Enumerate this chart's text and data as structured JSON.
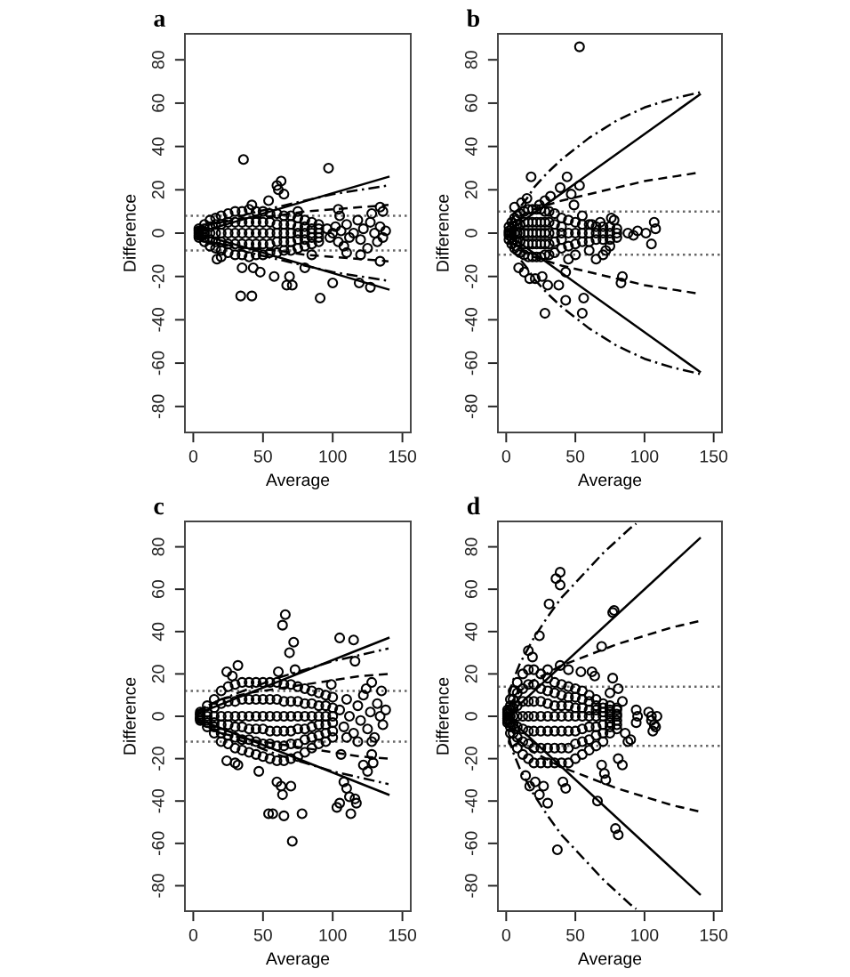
{
  "chart_data": [
    {
      "type": "scatter",
      "title": "a",
      "xlabel": "Average",
      "ylabel": "Difference",
      "xlim": [
        -6,
        156
      ],
      "ylim": [
        -92,
        92
      ],
      "xticks": [
        0,
        50,
        100,
        150
      ],
      "yticks": [
        -80,
        -60,
        -40,
        -20,
        0,
        20,
        40,
        60,
        80
      ],
      "ref_lines": [
        {
          "axis": "y",
          "value": 8,
          "color": "#666666",
          "line_style": "dotted"
        },
        {
          "axis": "y",
          "value": -8,
          "color": "#666666",
          "line_style": "dotted"
        }
      ],
      "series": [
        {
          "marker": "circle",
          "color": "#000000",
          "x": [
            4,
            4,
            4,
            4,
            4,
            8,
            8,
            8,
            8,
            8,
            12,
            12,
            12,
            12,
            12,
            16,
            16,
            16,
            16,
            16,
            20,
            20,
            20,
            20,
            20,
            25,
            25,
            25,
            25,
            25,
            30,
            30,
            30,
            30,
            30,
            35,
            35,
            35,
            35,
            35,
            40,
            40,
            40,
            40,
            40,
            45,
            45,
            45,
            45,
            45,
            50,
            50,
            50,
            50,
            50,
            55,
            55,
            55,
            55,
            55,
            60,
            60,
            60,
            60,
            60,
            65,
            65,
            65,
            65,
            65,
            70,
            70,
            70,
            70,
            70,
            75,
            75,
            75,
            75,
            75,
            80,
            80,
            80,
            80,
            80,
            85,
            85,
            85,
            85,
            85,
            90,
            90,
            90,
            90,
            90,
            96,
            98,
            100,
            102,
            104,
            106,
            108,
            110,
            112,
            115,
            118,
            120,
            122,
            125,
            127,
            130,
            132,
            134,
            136,
            138,
            110,
            120,
            128,
            105,
            136,
            36,
            97,
            60,
            63,
            61,
            65,
            54,
            42,
            104,
            134,
            134,
            34,
            42,
            91,
            69,
            71,
            67,
            58,
            48,
            43,
            35,
            100,
            119,
            127,
            80,
            20,
            17,
            75,
            85
          ],
          "values": [
            2,
            1,
            0,
            -1,
            -2,
            4,
            2,
            0,
            -2,
            -4,
            6,
            3,
            0,
            -3,
            -6,
            7,
            4,
            0,
            -4,
            -7,
            8,
            4,
            0,
            -4,
            -8,
            9,
            5,
            0,
            -5,
            -9,
            10,
            5,
            0,
            -5,
            -10,
            10,
            5,
            0,
            -5,
            -10,
            11,
            5,
            0,
            -5,
            -11,
            10,
            5,
            0,
            -5,
            -10,
            10,
            5,
            0,
            -5,
            -10,
            9,
            5,
            0,
            -5,
            -9,
            9,
            4,
            0,
            -4,
            -9,
            8,
            4,
            0,
            -4,
            -8,
            8,
            4,
            0,
            -4,
            -8,
            7,
            3,
            0,
            -3,
            -7,
            6,
            3,
            0,
            -3,
            -6,
            5,
            2,
            0,
            -2,
            -5,
            4,
            2,
            0,
            -2,
            -4,
            2,
            -2,
            0,
            3,
            -4,
            1,
            -6,
            4,
            -2,
            0,
            6,
            -3,
            2,
            -7,
            5,
            0,
            -4,
            3,
            -2,
            1,
            -9,
            -10,
            9,
            8,
            10,
            34,
            30,
            22,
            24,
            20,
            18,
            15,
            13,
            11,
            12,
            -13,
            -29,
            -29,
            -30,
            -20,
            -24,
            -24,
            -20,
            -18,
            -16,
            -16,
            -23,
            -23,
            -25,
            -16,
            -11,
            -12,
            10,
            -10
          ]
        },
        {
          "type": "line",
          "line_style": "solid",
          "color": "#000000",
          "x": [
            2,
            140
          ],
          "values": [
            0,
            26
          ]
        },
        {
          "type": "line",
          "line_style": "solid",
          "color": "#000000",
          "x": [
            2,
            140
          ],
          "values": [
            0,
            -26
          ]
        },
        {
          "type": "line",
          "line_style": "dashdot",
          "color": "#000000",
          "x": [
            2,
            10,
            20,
            40,
            60,
            80,
            100,
            120,
            140
          ],
          "values": [
            1,
            3,
            5,
            9,
            12,
            15,
            18,
            20,
            22
          ]
        },
        {
          "type": "line",
          "line_style": "dashdot",
          "color": "#000000",
          "x": [
            2,
            10,
            20,
            40,
            60,
            80,
            100,
            120,
            140
          ],
          "values": [
            -1,
            -3,
            -5,
            -9,
            -12,
            -15,
            -18,
            -20,
            -22
          ]
        },
        {
          "type": "line",
          "line_style": "dashed",
          "color": "#000000",
          "x": [
            2,
            10,
            20,
            40,
            60,
            80,
            100,
            120,
            140
          ],
          "values": [
            2,
            4,
            5,
            7,
            8,
            10,
            11,
            12,
            13
          ]
        },
        {
          "type": "line",
          "line_style": "dashed",
          "color": "#000000",
          "x": [
            2,
            10,
            20,
            40,
            60,
            80,
            100,
            120,
            140
          ],
          "values": [
            -2,
            -4,
            -5,
            -7,
            -8,
            -10,
            -11,
            -12,
            -13
          ]
        }
      ]
    },
    {
      "type": "scatter",
      "title": "b",
      "xlabel": "Average",
      "ylabel": "Difference",
      "xlim": [
        -6,
        156
      ],
      "ylim": [
        -92,
        92
      ],
      "xticks": [
        0,
        50,
        100,
        150
      ],
      "yticks": [
        -80,
        -60,
        -40,
        -20,
        0,
        20,
        40,
        60,
        80
      ],
      "ref_lines": [
        {
          "axis": "y",
          "value": 10,
          "color": "#666666",
          "line_style": "dotted"
        },
        {
          "axis": "y",
          "value": -10,
          "color": "#666666",
          "line_style": "dotted"
        }
      ],
      "series": [
        {
          "marker": "circle",
          "color": "#000000",
          "x": [
            2,
            2,
            2,
            2,
            2,
            4,
            4,
            4,
            4,
            4,
            6,
            6,
            6,
            6,
            6,
            8,
            8,
            8,
            8,
            8,
            10,
            10,
            10,
            10,
            10,
            13,
            13,
            13,
            13,
            13,
            16,
            16,
            16,
            16,
            16,
            19,
            19,
            19,
            19,
            19,
            22,
            22,
            22,
            22,
            22,
            25,
            25,
            25,
            25,
            25,
            28,
            28,
            28,
            28,
            28,
            31,
            31,
            31,
            31,
            31,
            35,
            35,
            35,
            35,
            35,
            40,
            40,
            40,
            40,
            40,
            45,
            45,
            45,
            50,
            50,
            50,
            55,
            55,
            55,
            60,
            60,
            60,
            65,
            65,
            65,
            70,
            70,
            70,
            75,
            75,
            75,
            80,
            80,
            80,
            45,
            50,
            60,
            65,
            70,
            72,
            55,
            62,
            68,
            76,
            75,
            78,
            53,
            18,
            44,
            53,
            28,
            6,
            11,
            15,
            24,
            32,
            39,
            47,
            49,
            28,
            55,
            43,
            56,
            84,
            83,
            88,
            92,
            95,
            101,
            105,
            107,
            108,
            9,
            13,
            17,
            21,
            26,
            30,
            38,
            43
          ],
          "values": [
            3,
            1,
            0,
            -1,
            -3,
            5,
            2,
            0,
            -2,
            -5,
            7,
            3,
            0,
            -3,
            -7,
            8,
            4,
            0,
            -4,
            -8,
            9,
            4,
            0,
            -4,
            -9,
            10,
            5,
            0,
            -5,
            -10,
            11,
            5,
            0,
            -5,
            -11,
            11,
            5,
            0,
            -5,
            -11,
            11,
            5,
            0,
            -5,
            -11,
            11,
            5,
            0,
            -5,
            -11,
            10,
            5,
            0,
            -5,
            -10,
            10,
            5,
            0,
            -5,
            -10,
            9,
            4,
            0,
            -4,
            -9,
            7,
            3,
            0,
            -3,
            -7,
            6,
            0,
            -6,
            5,
            0,
            -5,
            4,
            0,
            -4,
            4,
            0,
            -4,
            3,
            0,
            -3,
            3,
            0,
            -3,
            3,
            0,
            -3,
            2,
            0,
            -2,
            -12,
            -10,
            -8,
            -12,
            -10,
            -8,
            8,
            4,
            5,
            7,
            -6,
            6,
            86,
            26,
            26,
            22,
            15,
            12,
            14,
            16,
            13,
            17,
            21,
            18,
            13,
            -37,
            -37,
            -31,
            -30,
            -20,
            -23,
            0,
            -1,
            1,
            0,
            -5,
            5,
            2,
            -16,
            -18,
            -21,
            -21,
            -20,
            -24,
            -24,
            -18
          ]
        },
        {
          "type": "line",
          "line_style": "solid",
          "color": "#000000",
          "x": [
            2,
            140
          ],
          "values": [
            1,
            64
          ]
        },
        {
          "type": "line",
          "line_style": "solid",
          "color": "#000000",
          "x": [
            2,
            140
          ],
          "values": [
            -1,
            -64
          ]
        },
        {
          "type": "line",
          "line_style": "dashdot",
          "color": "#000000",
          "x": [
            2,
            10,
            15,
            20,
            30,
            40,
            50,
            60,
            70,
            80,
            100,
            120,
            140
          ],
          "values": [
            4,
            12,
            16,
            21,
            28,
            34,
            39,
            44,
            48,
            52,
            58,
            62,
            65
          ]
        },
        {
          "type": "line",
          "line_style": "dashdot",
          "color": "#000000",
          "x": [
            2,
            10,
            15,
            20,
            30,
            40,
            50,
            60,
            70,
            80,
            100,
            120,
            140
          ],
          "values": [
            -4,
            -12,
            -16,
            -21,
            -28,
            -34,
            -39,
            -44,
            -48,
            -52,
            -58,
            -62,
            -65
          ]
        },
        {
          "type": "line",
          "line_style": "dashed",
          "color": "#000000",
          "x": [
            2,
            10,
            20,
            40,
            60,
            80,
            100,
            120,
            140
          ],
          "values": [
            3,
            8,
            11,
            15,
            18,
            21,
            24,
            26,
            28
          ]
        },
        {
          "type": "line",
          "line_style": "dashed",
          "color": "#000000",
          "x": [
            2,
            10,
            20,
            40,
            60,
            80,
            100,
            120,
            140
          ],
          "values": [
            -3,
            -8,
            -11,
            -15,
            -18,
            -21,
            -24,
            -26,
            -28
          ]
        }
      ]
    },
    {
      "type": "scatter",
      "title": "c",
      "xlabel": "Average",
      "ylabel": "Difference",
      "xlim": [
        -6,
        156
      ],
      "ylim": [
        -92,
        92
      ],
      "xticks": [
        0,
        50,
        100,
        150
      ],
      "yticks": [
        -80,
        -60,
        -40,
        -20,
        0,
        20,
        40,
        60,
        80
      ],
      "ref_lines": [
        {
          "axis": "y",
          "value": 12,
          "color": "#666666",
          "line_style": "dotted"
        },
        {
          "axis": "y",
          "value": -12,
          "color": "#666666",
          "line_style": "dotted"
        }
      ],
      "series": [
        {
          "marker": "circle",
          "color": "#000000",
          "x": [
            5,
            5,
            5,
            5,
            5,
            5,
            10,
            10,
            10,
            10,
            10,
            10,
            15,
            15,
            15,
            15,
            15,
            15,
            20,
            20,
            20,
            20,
            20,
            20,
            25,
            25,
            25,
            25,
            25,
            25,
            30,
            30,
            30,
            30,
            30,
            30,
            35,
            35,
            35,
            35,
            35,
            35,
            40,
            40,
            40,
            40,
            40,
            40,
            45,
            45,
            45,
            45,
            45,
            45,
            50,
            50,
            50,
            50,
            50,
            50,
            55,
            55,
            55,
            55,
            55,
            55,
            60,
            60,
            60,
            60,
            60,
            60,
            65,
            65,
            65,
            65,
            65,
            65,
            70,
            70,
            70,
            70,
            70,
            70,
            75,
            75,
            75,
            75,
            75,
            75,
            80,
            80,
            80,
            80,
            80,
            80,
            85,
            85,
            85,
            85,
            85,
            85,
            90,
            90,
            90,
            90,
            90,
            90,
            95,
            95,
            95,
            95,
            95,
            95,
            100,
            100,
            100,
            100,
            100,
            100,
            105,
            108,
            110,
            112,
            115,
            118,
            120,
            122,
            125,
            127,
            130,
            132,
            134,
            136,
            138,
            135,
            128,
            118,
            110,
            124,
            66,
            64,
            72,
            69,
            105,
            115,
            116,
            61,
            73,
            24,
            32,
            128,
            99,
            71,
            54,
            57,
            65,
            78,
            103,
            105,
            113,
            117,
            116,
            60,
            63,
            64,
            70,
            47,
            32,
            24,
            108,
            110,
            112,
            128,
            129,
            122,
            125,
            106,
            28,
            30
          ],
          "values": [
            2,
            1,
            0,
            -1,
            -1,
            -2,
            5,
            2,
            0,
            -2,
            -3,
            -5,
            8,
            4,
            0,
            -3,
            -5,
            -8,
            12,
            6,
            0,
            -4,
            -8,
            -12,
            14,
            7,
            0,
            -4,
            -9,
            -13,
            15,
            7,
            0,
            -5,
            -10,
            -15,
            16,
            8,
            0,
            -5,
            -11,
            -16,
            16,
            8,
            0,
            -6,
            -11,
            -17,
            16,
            8,
            0,
            -6,
            -12,
            -18,
            16,
            8,
            0,
            -6,
            -13,
            -19,
            16,
            8,
            0,
            -7,
            -13,
            -20,
            16,
            8,
            0,
            -7,
            -14,
            -21,
            15,
            7,
            0,
            -7,
            -14,
            -21,
            15,
            7,
            0,
            -7,
            -13,
            -20,
            14,
            7,
            0,
            -6,
            -13,
            -19,
            13,
            6,
            0,
            -6,
            -11,
            -17,
            12,
            6,
            0,
            -5,
            -10,
            -15,
            11,
            5,
            0,
            -4,
            -9,
            -13,
            10,
            5,
            0,
            -4,
            -8,
            -12,
            9,
            4,
            0,
            -3,
            -7,
            -10,
            3,
            -5,
            8,
            0,
            -8,
            5,
            -2,
            10,
            -6,
            2,
            -10,
            6,
            0,
            -4,
            3,
            12,
            -12,
            -12,
            -10,
            13,
            48,
            43,
            35,
            30,
            37,
            36,
            26,
            21,
            22,
            21,
            24,
            16,
            15,
            -59,
            -46,
            -46,
            -47,
            -46,
            -43,
            -41,
            -46,
            -41,
            -39,
            -31,
            -33,
            -37,
            -33,
            -26,
            -23,
            -21,
            -31,
            -34,
            -38,
            -18,
            -22,
            -23,
            -26,
            -18,
            19,
            -22
          ]
        },
        {
          "type": "line",
          "line_style": "solid",
          "color": "#000000",
          "x": [
            2,
            140
          ],
          "values": [
            1,
            37
          ]
        },
        {
          "type": "line",
          "line_style": "solid",
          "color": "#000000",
          "x": [
            2,
            140
          ],
          "values": [
            -1,
            -37
          ]
        },
        {
          "type": "line",
          "line_style": "dashdot",
          "color": "#000000",
          "x": [
            2,
            10,
            20,
            40,
            60,
            80,
            100,
            120,
            140
          ],
          "values": [
            2,
            5,
            8,
            13,
            18,
            22,
            26,
            29,
            32
          ]
        },
        {
          "type": "line",
          "line_style": "dashdot",
          "color": "#000000",
          "x": [
            2,
            10,
            20,
            40,
            60,
            80,
            100,
            120,
            140
          ],
          "values": [
            -2,
            -5,
            -8,
            -13,
            -18,
            -22,
            -26,
            -29,
            -32
          ]
        },
        {
          "type": "line",
          "line_style": "dashed",
          "color": "#000000",
          "x": [
            2,
            10,
            20,
            40,
            60,
            80,
            100,
            120,
            140
          ],
          "values": [
            2,
            5,
            8,
            11,
            13,
            15,
            17,
            19,
            20
          ]
        },
        {
          "type": "line",
          "line_style": "dashed",
          "color": "#000000",
          "x": [
            2,
            10,
            20,
            40,
            60,
            80,
            100,
            120,
            140
          ],
          "values": [
            -2,
            -5,
            -8,
            -11,
            -13,
            -15,
            -17,
            -19,
            -20
          ]
        }
      ]
    },
    {
      "type": "scatter",
      "title": "d",
      "xlabel": "Average",
      "ylabel": "Difference",
      "xlim": [
        -6,
        156
      ],
      "ylim": [
        -92,
        92
      ],
      "xticks": [
        0,
        50,
        100,
        150
      ],
      "yticks": [
        -80,
        -60,
        -40,
        -20,
        0,
        20,
        40,
        60,
        80
      ],
      "ref_lines": [
        {
          "axis": "y",
          "value": 14,
          "color": "#666666",
          "line_style": "dotted"
        },
        {
          "axis": "y",
          "value": -14,
          "color": "#666666",
          "line_style": "dotted"
        }
      ],
      "series": [
        {
          "marker": "circle",
          "color": "#000000",
          "x": [
            1,
            1,
            1,
            1,
            1,
            1,
            1,
            3,
            3,
            3,
            3,
            3,
            3,
            3,
            5,
            5,
            5,
            5,
            5,
            5,
            5,
            8,
            8,
            8,
            8,
            8,
            8,
            8,
            12,
            12,
            12,
            12,
            12,
            12,
            12,
            16,
            16,
            16,
            16,
            16,
            16,
            16,
            20,
            20,
            20,
            20,
            20,
            20,
            20,
            25,
            25,
            25,
            25,
            25,
            25,
            25,
            30,
            30,
            30,
            30,
            30,
            30,
            30,
            35,
            35,
            35,
            35,
            35,
            35,
            35,
            40,
            40,
            40,
            40,
            40,
            40,
            40,
            45,
            45,
            45,
            45,
            45,
            45,
            45,
            50,
            50,
            50,
            50,
            50,
            50,
            50,
            55,
            55,
            55,
            55,
            55,
            55,
            55,
            60,
            60,
            60,
            60,
            60,
            60,
            60,
            65,
            65,
            65,
            65,
            65,
            65,
            65,
            70,
            70,
            70,
            70,
            70,
            70,
            70,
            75,
            75,
            75,
            75,
            75,
            75,
            75,
            80,
            80,
            80,
            80,
            80,
            80,
            80,
            39,
            36,
            39,
            31,
            78,
            77,
            24,
            69,
            16,
            19,
            37,
            79,
            81,
            66,
            30,
            24,
            27,
            17,
            14,
            21,
            41,
            43,
            77,
            81,
            84,
            88,
            90,
            84,
            81,
            94,
            94,
            95,
            105,
            107,
            106,
            108,
            103,
            69,
            71,
            72,
            54,
            64,
            62,
            30,
            39,
            45,
            86,
            75,
            105,
            109
          ],
          "values": [
            3,
            2,
            1,
            0,
            -1,
            -2,
            -3,
            8,
            5,
            3,
            0,
            -3,
            -5,
            -8,
            12,
            8,
            4,
            0,
            -4,
            -8,
            -12,
            16,
            11,
            5,
            0,
            -5,
            -10,
            -15,
            20,
            13,
            7,
            0,
            -6,
            -12,
            -18,
            22,
            15,
            7,
            0,
            -7,
            -13,
            -20,
            22,
            15,
            7,
            0,
            -7,
            -15,
            -22,
            20,
            13,
            7,
            0,
            -7,
            -15,
            -22,
            18,
            12,
            6,
            0,
            -7,
            -15,
            -22,
            16,
            11,
            5,
            0,
            -7,
            -15,
            -22,
            15,
            10,
            5,
            0,
            -7,
            -15,
            -22,
            14,
            9,
            5,
            0,
            -7,
            -15,
            -22,
            13,
            9,
            4,
            0,
            -7,
            -13,
            -20,
            12,
            8,
            4,
            0,
            -6,
            -12,
            -18,
            10,
            7,
            3,
            0,
            -5,
            -11,
            -16,
            8,
            5,
            3,
            0,
            -5,
            -9,
            -14,
            6,
            4,
            2,
            0,
            -4,
            -8,
            -12,
            5,
            3,
            2,
            0,
            -3,
            -5,
            -8,
            4,
            3,
            1,
            0,
            -2,
            -4,
            -6,
            68,
            65,
            62,
            53,
            50,
            49,
            38,
            33,
            31,
            28,
            -63,
            -53,
            -56,
            -40,
            -41,
            -37,
            -33,
            -33,
            -28,
            -31,
            -31,
            -34,
            18,
            13,
            7,
            -12,
            -11,
            -23,
            -20,
            -3,
            3,
            0,
            0,
            -4,
            -7,
            -5,
            2,
            -23,
            -27,
            -30,
            21,
            19,
            21,
            22,
            24,
            22,
            -8,
            11,
            -2,
            0
          ]
        },
        {
          "type": "line",
          "line_style": "solid",
          "color": "#000000",
          "x": [
            2,
            140
          ],
          "values": [
            1,
            84
          ]
        },
        {
          "type": "line",
          "line_style": "solid",
          "color": "#000000",
          "x": [
            2,
            140
          ],
          "values": [
            -1,
            -84
          ]
        },
        {
          "type": "line",
          "line_style": "dashdot",
          "color": "#000000",
          "x": [
            2,
            5,
            10,
            20,
            30,
            40,
            50,
            60,
            70,
            80,
            90,
            94
          ],
          "values": [
            10,
            17,
            25,
            37,
            47,
            56,
            63,
            70,
            77,
            83,
            89,
            91
          ]
        },
        {
          "type": "line",
          "line_style": "dashdot",
          "color": "#000000",
          "x": [
            2,
            5,
            10,
            20,
            30,
            40,
            50,
            60,
            70,
            80,
            90,
            94
          ],
          "values": [
            -10,
            -17,
            -25,
            -37,
            -47,
            -56,
            -63,
            -70,
            -77,
            -83,
            -89,
            -91
          ]
        },
        {
          "type": "line",
          "line_style": "dashed",
          "color": "#000000",
          "x": [
            2,
            10,
            20,
            40,
            60,
            80,
            100,
            120,
            140
          ],
          "values": [
            5,
            12,
            17,
            24,
            29,
            34,
            38,
            42,
            45
          ]
        },
        {
          "type": "line",
          "line_style": "dashed",
          "color": "#000000",
          "x": [
            2,
            10,
            20,
            40,
            60,
            80,
            100,
            120,
            140
          ],
          "values": [
            -5,
            -12,
            -17,
            -24,
            -29,
            -34,
            -38,
            -42,
            -45
          ]
        }
      ]
    }
  ]
}
